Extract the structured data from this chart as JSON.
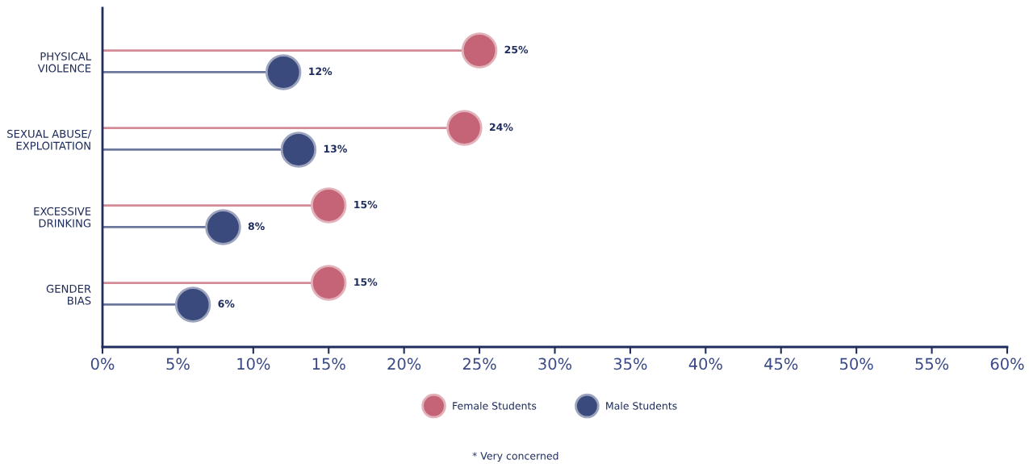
{
  "chart_data": {
    "type": "lollipop",
    "orientation": "horizontal",
    "categories": [
      "PHYSICAL\nVIOLENCE",
      "SEXUAL ABUSE/\nEXPLOITATION",
      "EXCESSIVE\nDRINKING",
      "GENDER\nBIAS"
    ],
    "series": [
      {
        "name": "Female Students",
        "color": "#c46476",
        "values": [
          25,
          24,
          15,
          15
        ],
        "value_labels": [
          "25%",
          "24%",
          "15%",
          "15%"
        ]
      },
      {
        "name": "Male Students",
        "color": "#3b4a7c",
        "values": [
          12,
          13,
          8,
          6
        ],
        "value_labels": [
          "12%",
          "13%",
          "8%",
          "6%"
        ]
      }
    ],
    "xlim": [
      0,
      60
    ],
    "xticks": [
      {
        "value": 0,
        "label": "0%"
      },
      {
        "value": 5,
        "label": "5%"
      },
      {
        "value": 10,
        "label": "10%"
      },
      {
        "value": 15,
        "label": "15%"
      },
      {
        "value": 20,
        "label": "20%"
      },
      {
        "value": 25,
        "label": "25%"
      },
      {
        "value": 30,
        "label": "30%"
      },
      {
        "value": 35,
        "label": "35%"
      },
      {
        "value": 40,
        "label": "40%"
      },
      {
        "value": 45,
        "label": "45%"
      },
      {
        "value": 50,
        "label": "50%"
      },
      {
        "value": 55,
        "label": "55%"
      },
      {
        "value": 60,
        "label": "60%"
      }
    ],
    "legend": "bottom",
    "grid": false,
    "marker": "circle",
    "annotations": [
      "* Very concerned"
    ]
  }
}
